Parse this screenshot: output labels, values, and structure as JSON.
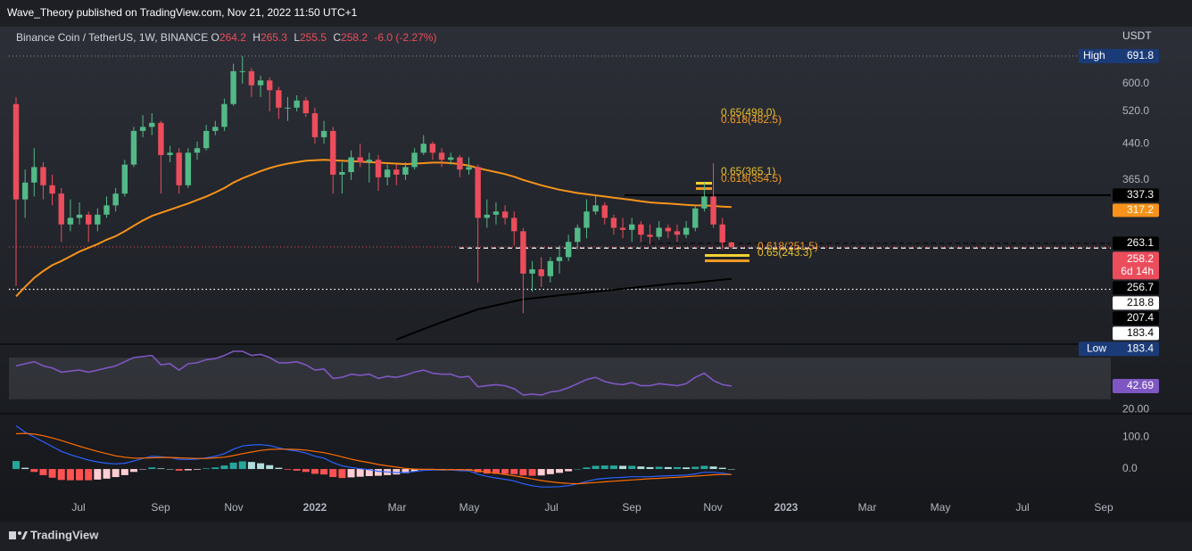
{
  "header": {
    "text": "Wave_Theory published on TradingView.com, Nov 21, 2022 11:50 UTC+1"
  },
  "footer": {
    "brand": "TradingView"
  },
  "chart_data": [
    {
      "type": "candlestick",
      "title": "Binance Coin / TetherUS, 1W, BINANCE",
      "ohlc_letters": [
        "O",
        "H",
        "L",
        "C"
      ],
      "change_label": "-6.0 (-2.27%)",
      "currency": "USDT",
      "log_scale": true,
      "up_color": "#53b987",
      "down_color": "#eb4d5c",
      "ylim": [
        157,
        805
      ],
      "yticks": [
        {
          "value": 600,
          "label": "600.0"
        },
        {
          "value": 520,
          "label": "520.0"
        },
        {
          "value": 440,
          "label": "440.0"
        },
        {
          "value": 365,
          "label": "365.0"
        }
      ],
      "open": [
        540,
        330,
        360,
        390,
        355,
        340,
        290,
        300,
        305,
        290,
        305,
        320,
        340,
        395,
        470,
        480,
        490,
        415,
        420,
        355,
        420,
        430,
        470,
        480,
        540,
        640,
        640,
        595,
        610,
        580,
        530,
        530,
        550,
        515,
        455,
        470,
        375,
        380,
        410,
        400,
        405,
        370,
        385,
        375,
        390,
        420,
        440,
        420,
        405,
        410,
        385,
        390,
        300,
        305,
        310,
        300,
        280,
        225,
        230,
        222,
        240,
        245,
        265,
        285,
        310,
        320,
        300,
        285,
        282,
        290,
        275,
        272,
        285,
        280,
        275,
        285,
        315,
        335,
        290,
        264.2
      ],
      "high": [
        560,
        385,
        430,
        400,
        375,
        350,
        330,
        325,
        310,
        315,
        335,
        350,
        405,
        480,
        510,
        515,
        495,
        435,
        430,
        430,
        445,
        485,
        495,
        555,
        665,
        691.8,
        650,
        625,
        620,
        590,
        560,
        565,
        560,
        530,
        495,
        480,
        400,
        425,
        440,
        420,
        415,
        395,
        395,
        400,
        430,
        460,
        445,
        430,
        420,
        415,
        410,
        395,
        330,
        325,
        320,
        310,
        285,
        240,
        245,
        245,
        260,
        275,
        290,
        330,
        337,
        325,
        305,
        300,
        300,
        295,
        290,
        295,
        290,
        290,
        295,
        320,
        360,
        398,
        300,
        265.3
      ],
      "low": [
        211,
        300,
        335,
        330,
        320,
        265,
        280,
        290,
        265,
        280,
        300,
        310,
        335,
        390,
        455,
        460,
        340,
        400,
        340,
        350,
        405,
        425,
        460,
        470,
        535,
        600,
        560,
        560,
        520,
        500,
        495,
        520,
        505,
        440,
        440,
        340,
        340,
        365,
        390,
        360,
        345,
        355,
        355,
        365,
        385,
        415,
        405,
        390,
        395,
        370,
        375,
        215,
        285,
        290,
        290,
        260,
        183.4,
        205,
        210,
        215,
        225,
        240,
        255,
        270,
        305,
        290,
        275,
        270,
        265,
        265,
        262,
        268,
        270,
        265,
        270,
        280,
        310,
        285,
        255,
        255.5
      ],
      "close": [
        330,
        360,
        390,
        355,
        340,
        290,
        300,
        305,
        290,
        305,
        320,
        340,
        395,
        470,
        480,
        490,
        415,
        420,
        355,
        420,
        430,
        470,
        480,
        540,
        640,
        640,
        595,
        610,
        580,
        530,
        530,
        550,
        515,
        455,
        470,
        375,
        380,
        410,
        400,
        405,
        370,
        385,
        375,
        390,
        420,
        440,
        420,
        405,
        410,
        385,
        390,
        300,
        305,
        310,
        300,
        280,
        225,
        230,
        222,
        240,
        245,
        265,
        285,
        310,
        320,
        300,
        285,
        282,
        290,
        275,
        272,
        285,
        280,
        275,
        285,
        315,
        335,
        290,
        264.2,
        258.2
      ],
      "moving_averages": [
        {
          "color": "#f7931a",
          "values": [
            200,
            210,
            220,
            228,
            235,
            240,
            246,
            252,
            257,
            262,
            268,
            273,
            280,
            288,
            296,
            303,
            308,
            313,
            318,
            323,
            329,
            335,
            342,
            350,
            360,
            368,
            375,
            382,
            388,
            393,
            397,
            400,
            403,
            404,
            405,
            404,
            403,
            402,
            401,
            400,
            399,
            398,
            397,
            396,
            397,
            398,
            399,
            399,
            398,
            396,
            393,
            388,
            384,
            380,
            376,
            371,
            365,
            360,
            355,
            351,
            347,
            344,
            341,
            339,
            337,
            335,
            333,
            331,
            329,
            327,
            325,
            324,
            323,
            322,
            321,
            320,
            320,
            319,
            318,
            317.2
          ]
        },
        {
          "color": "#000000",
          "values": [
            null,
            null,
            null,
            null,
            null,
            null,
            null,
            null,
            null,
            null,
            null,
            null,
            null,
            null,
            null,
            null,
            null,
            null,
            null,
            null,
            null,
            null,
            null,
            null,
            null,
            null,
            null,
            null,
            null,
            null,
            null,
            null,
            null,
            null,
            null,
            null,
            null,
            null,
            null,
            null,
            null,
            null,
            160,
            163,
            166,
            169,
            172,
            175,
            178,
            181,
            184,
            187,
            189,
            191,
            193,
            195,
            197,
            198,
            199,
            200,
            201,
            202,
            203,
            204,
            205,
            206,
            207,
            208,
            209,
            210,
            211,
            212,
            213,
            214,
            214,
            215,
            216,
            217,
            218,
            218.8
          ]
        }
      ],
      "levels": [
        {
          "value": 337.3,
          "color": "#000000",
          "style": "solid"
        },
        {
          "value": 263.1,
          "color": "#0b0b0b",
          "style": "dashed"
        },
        {
          "value": 256.7,
          "color": "#ffffff",
          "style": "dashed"
        },
        {
          "value": 207.4,
          "color": "#ffffff",
          "style": "dotted"
        }
      ],
      "high_label": "High",
      "low_label": "Low",
      "countdown": "6d 14h",
      "fib_labels": [
        {
          "text": "0.65(498.0)",
          "color": "#e8c12c"
        },
        {
          "text": "0.618(482.5)",
          "color": "#f09a28"
        },
        {
          "text": "0.65(365.1)",
          "color": "#e8c12c"
        },
        {
          "text": "0.618(354.5)",
          "color": "#f09a28"
        },
        {
          "text": "0.618(251.5)",
          "color": "#f09a28"
        },
        {
          "text": "0.65(243.3)",
          "color": "#e8c12c"
        }
      ],
      "time_labels": [
        "Jul",
        "Sep",
        "Nov",
        "2022",
        "Mar",
        "May",
        "Jul",
        "Sep",
        "Nov",
        "2023",
        "Mar",
        "May",
        "Jul",
        "Sep"
      ]
    },
    {
      "type": "line",
      "color": "#7e57c2",
      "ylim": [
        17,
        82
      ],
      "band": [
        30,
        70
      ],
      "yticks": [
        {
          "value": 20,
          "label": "20.00"
        }
      ],
      "values": [
        62,
        64,
        66,
        62,
        60,
        56,
        57,
        58,
        56,
        58,
        60,
        62,
        66,
        70,
        71,
        72,
        63,
        64,
        58,
        64,
        65,
        68,
        69,
        72,
        76,
        76,
        72,
        73,
        70,
        65,
        65,
        66,
        63,
        58,
        59,
        50,
        51,
        54,
        53,
        54,
        50,
        52,
        51,
        53,
        56,
        58,
        55,
        54,
        54,
        51,
        52,
        42,
        43,
        44,
        43,
        40,
        34,
        35,
        34,
        37,
        38,
        41,
        45,
        49,
        51,
        47,
        45,
        44,
        46,
        43,
        43,
        45,
        44,
        43,
        45,
        51,
        55,
        48,
        44,
        42.69
      ]
    },
    {
      "type": "macd",
      "ylim": [
        -61,
        167
      ],
      "yticks": [
        {
          "value": 100,
          "label": "100.0"
        },
        {
          "value": 0,
          "label": "0.0"
        }
      ],
      "macd_color": "#2962ff",
      "signal_color": "#ff6d00",
      "hist_colors": {
        "up_rising": "#26a69a",
        "up_falling": "#b2dfdb",
        "down_falling": "#ff5252",
        "down_rising": "#ffcdd2"
      },
      "macd": [
        135,
        115,
        100,
        85,
        70,
        55,
        45,
        36,
        28,
        22,
        18,
        16,
        18,
        25,
        33,
        40,
        38,
        36,
        30,
        30,
        31,
        35,
        40,
        48,
        62,
        72,
        75,
        76,
        73,
        66,
        60,
        56,
        50,
        40,
        34,
        20,
        10,
        5,
        1,
        -2,
        -7,
        -9,
        -11,
        -11,
        -8,
        -4,
        -3,
        -3,
        -3,
        -5,
        -6,
        -16,
        -23,
        -28,
        -32,
        -37,
        -46,
        -52,
        -56,
        -56,
        -55,
        -52,
        -46,
        -39,
        -32,
        -29,
        -27,
        -26,
        -24,
        -24,
        -24,
        -22,
        -21,
        -20,
        -19,
        -15,
        -10,
        -10,
        -13,
        -17
      ],
      "signal": [
        110,
        111,
        109,
        104,
        97,
        89,
        80,
        71,
        63,
        55,
        48,
        41,
        37,
        34,
        34,
        35,
        36,
        36,
        35,
        34,
        33,
        33,
        35,
        37,
        42,
        48,
        53,
        58,
        61,
        62,
        62,
        61,
        59,
        55,
        51,
        45,
        38,
        31,
        25,
        20,
        14,
        10,
        6,
        2,
        0,
        -1,
        -1,
        -2,
        -2,
        -2,
        -3,
        -6,
        -9,
        -13,
        -17,
        -21,
        -26,
        -31,
        -36,
        -40,
        -43,
        -45,
        -46,
        -44,
        -42,
        -40,
        -38,
        -36,
        -34,
        -32,
        -30,
        -29,
        -27,
        -26,
        -24,
        -22,
        -20,
        -18,
        -17,
        -17
      ],
      "histogram": [
        25,
        4,
        -9,
        -19,
        -27,
        -34,
        -35,
        -35,
        -35,
        -33,
        -30,
        -25,
        -19,
        -9,
        -1,
        5,
        2,
        0,
        -5,
        -4,
        -2,
        2,
        5,
        11,
        20,
        24,
        22,
        18,
        12,
        4,
        -2,
        -5,
        -9,
        -15,
        -17,
        -25,
        -28,
        -26,
        -24,
        -22,
        -21,
        -19,
        -17,
        -13,
        -8,
        -3,
        -2,
        -1,
        -1,
        -3,
        -3,
        -10,
        -14,
        -15,
        -15,
        -16,
        -20,
        -21,
        -20,
        -16,
        -12,
        -7,
        0,
        5,
        10,
        11,
        11,
        10,
        10,
        8,
        6,
        7,
        6,
        6,
        5,
        7,
        10,
        8,
        4,
        0
      ]
    }
  ]
}
